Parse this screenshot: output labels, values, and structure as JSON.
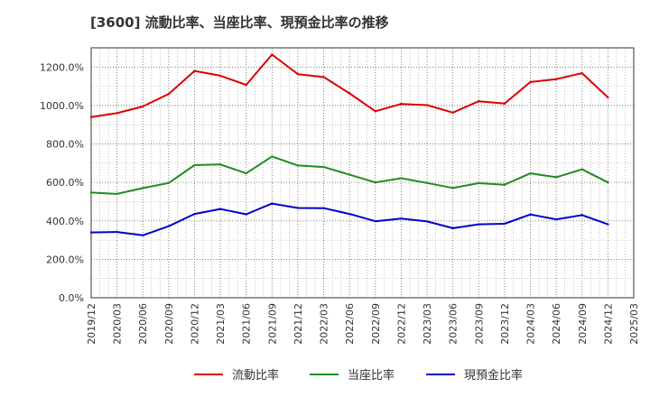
{
  "chart_data": {
    "type": "line",
    "title": "[3600]  流動比率、当座比率、現預金比率の推移",
    "xlabel": "",
    "ylabel": "",
    "ylim": [
      0,
      1300
    ],
    "yticks": [
      0,
      200,
      400,
      600,
      800,
      1000,
      1200
    ],
    "ytick_labels": [
      "0.0%",
      "200.0%",
      "400.0%",
      "600.0%",
      "800.0%",
      "1000.0%",
      "1200.0%"
    ],
    "grid": true,
    "legend_position": "bottom",
    "x": [
      "2019/12",
      "2020/03",
      "2020/06",
      "2020/09",
      "2020/12",
      "2021/03",
      "2021/06",
      "2021/09",
      "2021/12",
      "2022/03",
      "2022/06",
      "2022/09",
      "2022/12",
      "2023/03",
      "2023/06",
      "2023/09",
      "2023/12",
      "2024/03",
      "2024/06",
      "2024/09",
      "2024/12",
      "2025/03"
    ],
    "series": [
      {
        "name": "流動比率",
        "color": "#dd0000",
        "values": [
          940,
          960,
          995,
          1060,
          1180,
          1155,
          1107,
          1265,
          1163,
          1148,
          1063,
          970,
          1008,
          1002,
          963,
          1022,
          1010,
          1122,
          1137,
          1168,
          1042,
          null
        ]
      },
      {
        "name": "当座比率",
        "color": "#228b22",
        "values": [
          547,
          540,
          570,
          597,
          690,
          693,
          647,
          735,
          688,
          680,
          640,
          600,
          622,
          597,
          571,
          596,
          588,
          647,
          627,
          668,
          600,
          null
        ]
      },
      {
        "name": "現預金比率",
        "color": "#0000cc",
        "values": [
          340,
          342,
          325,
          372,
          436,
          462,
          434,
          490,
          467,
          466,
          436,
          398,
          412,
          397,
          362,
          382,
          385,
          433,
          408,
          430,
          382,
          null
        ]
      }
    ]
  }
}
